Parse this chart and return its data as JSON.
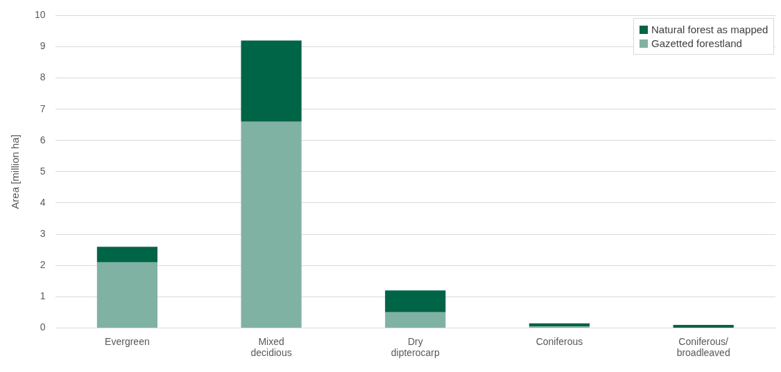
{
  "chart_data": {
    "type": "bar",
    "stacked": true,
    "ylabel": "Area [million ha]",
    "categories": [
      "Evergreen",
      "Mixed\ndecidious",
      "Dry\ndipterocarp",
      "Coniferous",
      "Coniferous/\nbroadleaved"
    ],
    "series": [
      {
        "name": "Gazetted forestland",
        "color": "#80b2a3",
        "values": [
          2.1,
          6.6,
          0.5,
          0.05,
          0
        ]
      },
      {
        "name": "Natural forest as mapped",
        "color": "#006446",
        "values": [
          0.5,
          2.6,
          0.7,
          0.1,
          0.1
        ]
      }
    ],
    "ylim": [
      0,
      10
    ],
    "yticks": [
      0,
      1,
      2,
      3,
      4,
      5,
      6,
      7,
      8,
      9,
      10
    ],
    "grid": "y",
    "legend": "top right"
  }
}
